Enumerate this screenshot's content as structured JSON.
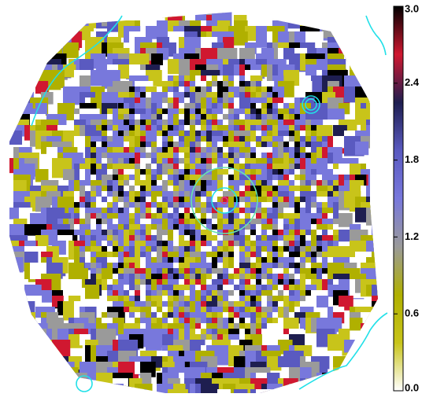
{
  "chart_data": {
    "type": "image",
    "colormap": [
      "#ffffff",
      "#c8c41a",
      "#b0b000",
      "#9a9a9a",
      "#7878dc",
      "#5a5ac0",
      "#1e1e50",
      "#d01830",
      "#000000"
    ],
    "clim": [
      0,
      3
    ],
    "cticks": [
      {
        "value": 0,
        "label": "0.0"
      },
      {
        "value": 0.6,
        "label": "0.6"
      },
      {
        "value": 1.2,
        "label": "1.2"
      },
      {
        "value": 1.8,
        "label": "1.8"
      },
      {
        "value": 2.4,
        "label": "2.4"
      },
      {
        "value": 3,
        "label": "3.0"
      }
    ]
  }
}
